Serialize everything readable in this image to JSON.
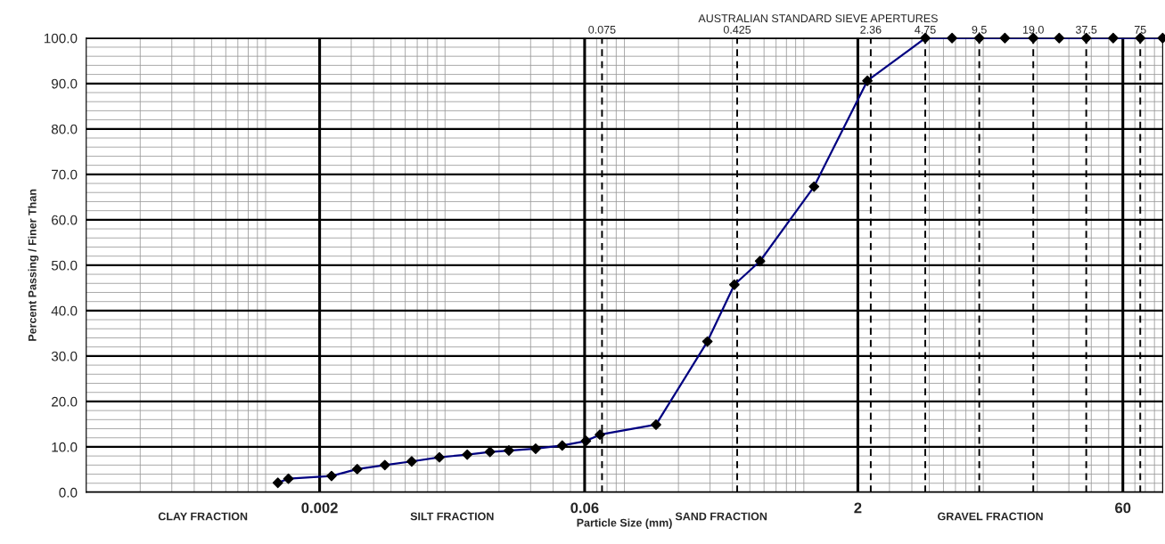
{
  "chart_data": {
    "type": "line",
    "title": "AUSTRALIAN STANDARD SIEVE APERTURES",
    "xlabel": "Particle Size (mm)",
    "ylabel": "Percent Passing / Finer Than",
    "log": "x",
    "xlim": [
      0.0001,
      100
    ],
    "xticks": [
      0.002,
      0.06,
      2,
      60
    ],
    "ylim": [
      0,
      100
    ],
    "yticks": [
      {
        "value": 0,
        "label": "0.0"
      },
      {
        "value": 10,
        "label": "10.0"
      },
      {
        "value": 20,
        "label": "20.0"
      },
      {
        "value": 30,
        "label": "30.0"
      },
      {
        "value": 40,
        "label": "40.0"
      },
      {
        "value": 50,
        "label": "50.0"
      },
      {
        "value": 60,
        "label": "60.0"
      },
      {
        "value": 70,
        "label": "70.0"
      },
      {
        "value": 80,
        "label": "80.0"
      },
      {
        "value": 90,
        "label": "90.0"
      },
      {
        "value": 100,
        "label": "100.0"
      }
    ],
    "grid": true,
    "marker": "diamond",
    "line_style": "solid",
    "series": [
      {
        "color": "#000080",
        "x": [
          0.00117,
          0.00134,
          0.00233,
          0.00324,
          0.00462,
          0.00652,
          0.0093,
          0.0133,
          0.0178,
          0.0227,
          0.032,
          0.045,
          0.061,
          0.073,
          0.15,
          0.29,
          0.41,
          0.57,
          1.14,
          2.26,
          4.75,
          6.7,
          9.5,
          13.2,
          19,
          26.5,
          37.5,
          53,
          75,
          100
        ],
        "values": [
          2.1,
          3.0,
          3.6,
          5.1,
          6.0,
          6.8,
          7.7,
          8.3,
          8.9,
          9.2,
          9.6,
          10.3,
          11.3,
          12.7,
          14.9,
          33.2,
          45.7,
          50.9,
          67.3,
          90.6,
          100,
          100,
          100,
          100,
          100,
          100,
          100,
          100,
          100,
          100
        ]
      }
    ],
    "ref_lines": [
      {
        "axis": "x",
        "value": 0.002,
        "line_style": "solid"
      },
      {
        "axis": "x",
        "value": 0.06,
        "line_style": "solid"
      },
      {
        "axis": "x",
        "value": 2,
        "line_style": "solid"
      },
      {
        "axis": "x",
        "value": 60,
        "line_style": "solid"
      },
      {
        "axis": "x",
        "value": 0.075,
        "label": "0.075",
        "line_style": "dashed"
      },
      {
        "axis": "x",
        "value": 0.425,
        "label": "0.425",
        "line_style": "dashed"
      },
      {
        "axis": "x",
        "value": 2.36,
        "label": "2.36",
        "line_style": "dashed"
      },
      {
        "axis": "x",
        "value": 4.75,
        "label": "4.75",
        "line_style": "dashed"
      },
      {
        "axis": "x",
        "value": 9.5,
        "label": "9.5",
        "line_style": "dashed"
      },
      {
        "axis": "x",
        "value": 19.0,
        "label": "19.0",
        "line_style": "dashed"
      },
      {
        "axis": "x",
        "value": 37.5,
        "label": "37.5",
        "line_style": "dashed"
      },
      {
        "axis": "x",
        "value": 75,
        "label": "75",
        "line_style": "dashed"
      }
    ],
    "annotations": [
      "CLAY FRACTION",
      "SILT FRACTION",
      "SAND FRACTION",
      "GRAVEL FRACTION"
    ]
  }
}
